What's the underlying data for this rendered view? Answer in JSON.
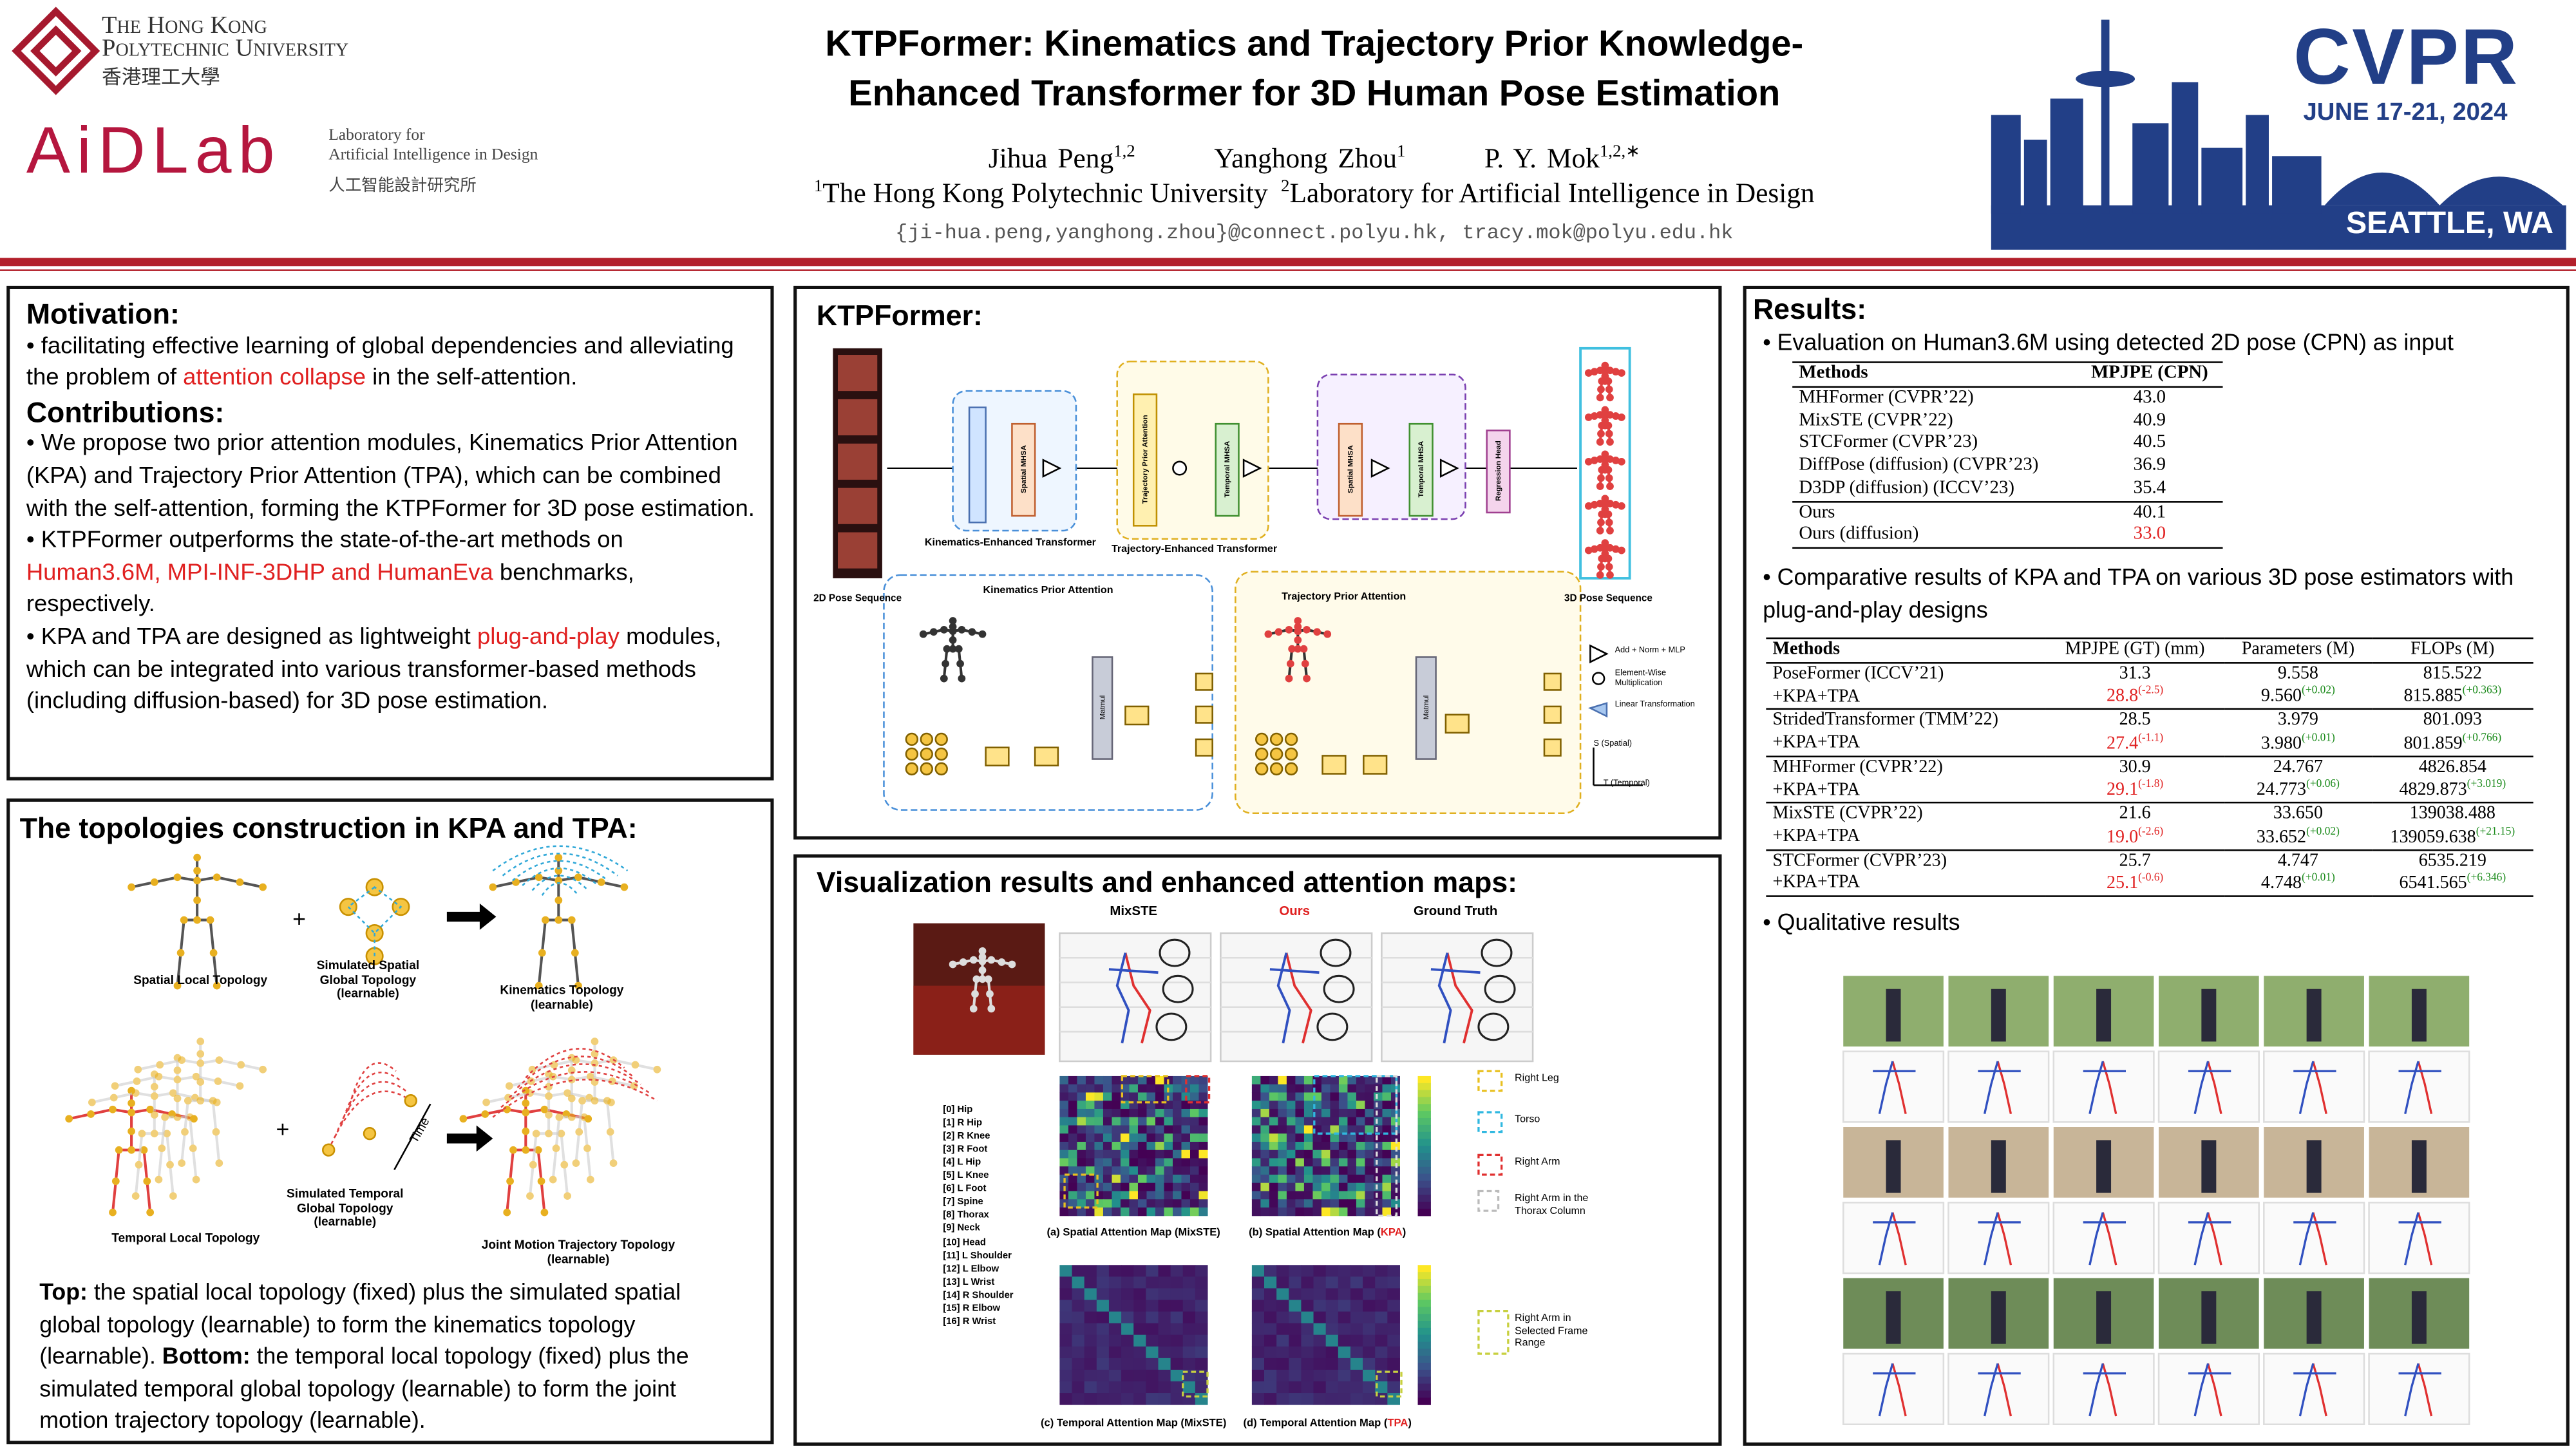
{
  "header": {
    "institution_line1": "The Hong Kong",
    "institution_line2": "Polytechnic University",
    "institution_cn": "香港理工大學",
    "lab_logo": "AiDLab",
    "lab_line1": "Laboratory for",
    "lab_line2": "Artificial Intelligence in Design",
    "lab_cn": "人工智能設計研究所",
    "title_line1": "KTPFormer: Kinematics and Trajectory Prior Knowledge-",
    "title_line2": "Enhanced Transformer for 3D Human Pose Estimation",
    "authors": [
      {
        "name": "Jihua Peng",
        "sup": "1,2"
      },
      {
        "name": "Yanghong Zhou",
        "sup": "1"
      },
      {
        "name": "P. Y. Mok",
        "sup": "1,2,∗"
      }
    ],
    "affiliations": [
      {
        "sup": "1",
        "text": "The Hong Kong Polytechnic University"
      },
      {
        "sup": "2",
        "text": "Laboratory for Artificial Intelligence in Design"
      }
    ],
    "emails": "{ji-hua.peng,yanghong.zhou}@connect.polyu.hk, tracy.mok@polyu.edu.hk",
    "conference": "CVPR",
    "dates": "JUNE 17-21, 2024",
    "location": "SEATTLE, WA"
  },
  "motivation": {
    "heading": "Motivation:",
    "parts": [
      {
        "text": "facilitating effective learning of global dependencies and alleviating the problem of "
      },
      {
        "text": "attention collapse",
        "emphasis": "red"
      },
      {
        "text": " in the self-attention."
      }
    ]
  },
  "contributions": {
    "heading": "Contributions:",
    "bullets": [
      [
        {
          "text": "We propose two prior attention modules, Kinematics Prior Attention (KPA) and Trajectory Prior Attention (TPA), which can be combined with the self-attention, forming the KTPFormer for 3D pose estimation."
        }
      ],
      [
        {
          "text": "KTPFormer outperforms the state-of-the-art methods on "
        },
        {
          "text": "Human3.6M, MPI-INF-3DHP and HumanEva",
          "emphasis": "red"
        },
        {
          "text": " benchmarks, respectively."
        }
      ],
      [
        {
          "text": "KPA and TPA are designed as lightweight "
        },
        {
          "text": "plug-and-play",
          "emphasis": "red"
        },
        {
          "text": " modules, which can be integrated into various transformer-based methods (including diffusion-based) for 3D pose estimation."
        }
      ]
    ]
  },
  "topology": {
    "heading": "The topologies construction in KPA and TPA:",
    "labels": {
      "spatial_local": "Spatial Local Topology",
      "spatial_global": "Simulated Spatial Global Topology (learnable)",
      "kinematics": "Kinematics Topology (learnable)",
      "temporal_local": "Temporal Local Topology",
      "temporal_global": "Simulated Temporal Global Topology (learnable)",
      "trajectory": "Joint Motion Trajectory Topology (learnable)",
      "time": "Time"
    },
    "caption": [
      {
        "text": "Top:",
        "emphasis": "bold"
      },
      {
        "text": " the spatial local topology (fixed) plus the simulated spatial global topology (learnable) to form the kinematics topology (learnable). "
      },
      {
        "text": "Bottom:",
        "emphasis": "bold"
      },
      {
        "text": " the temporal local topology (fixed) plus the simulated temporal global topology (learnable) to form the joint motion trajectory topology (learnable)."
      }
    ]
  },
  "architecture": {
    "heading": "KTPFormer:",
    "labels": {
      "input": "2D Pose Sequence",
      "output": "3D Pose Sequence",
      "ket": "Kinematics-Enhanced Transformer",
      "tet": "Trajectory-Enhanced Transformer",
      "kpa": "Kinematics Prior Attention",
      "tpa": "Trajectory Prior Attention",
      "spatial": "Spatial MHSA",
      "temporal": "Temporal MHSA",
      "head": "Regression Head",
      "matmul": "Matmul",
      "add_norm": "Add + Norm + MLP",
      "mult": "Element-Wise Multiplication",
      "linear": "Linear Transformation",
      "s_axis": "S (Spatial)",
      "t_axis": "T (Temporal)"
    }
  },
  "visualization": {
    "heading": "Visualization results and enhanced attention maps:",
    "columns": [
      {
        "text": "MixSTE"
      },
      {
        "text": "Ours",
        "emphasis": "red"
      },
      {
        "text": "Ground Truth"
      }
    ],
    "joints": [
      "[0] Hip",
      "[1] R Hip",
      "[2] R Knee",
      "[3] R Foot",
      "[4] L Hip",
      "[5] L Knee",
      "[6] L Foot",
      "[7] Spine",
      "[8] Thorax",
      "[9] Neck",
      "[10] Head",
      "[11] L Shoulder",
      "[12] L Elbow",
      "[13] L Wrist",
      "[14] R Shoulder",
      "[15] R Elbow",
      "[16] R Wrist"
    ],
    "captions": [
      [
        {
          "text": "(a) Spatial Attention Map (MixSTE)"
        }
      ],
      [
        {
          "text": "(b) Spatial Attention Map ("
        },
        {
          "text": "KPA",
          "emphasis": "red"
        },
        {
          "text": ")"
        }
      ],
      [
        {
          "text": "(c) Temporal Attention Map (MixSTE)"
        }
      ],
      [
        {
          "text": "(d) Temporal Attention Map ("
        },
        {
          "text": "TPA",
          "emphasis": "red"
        },
        {
          "text": ")"
        }
      ]
    ],
    "legend": [
      {
        "text": "Right Leg",
        "color": "#e8c020"
      },
      {
        "text": "Torso",
        "color": "#30b8e0"
      },
      {
        "text": "Right Arm",
        "color": "#e03030"
      },
      {
        "text": "Right Arm in the Thorax Column",
        "color": "#bbbbbb"
      },
      {
        "text": "Right Arm in Selected Frame Range",
        "color": "#c8d040"
      }
    ]
  },
  "results": {
    "heading": "Results:",
    "bullet1": "Evaluation on Human3.6M using detected 2D pose (CPN) as input",
    "table1": {
      "headers": [
        "Methods",
        "MPJPE (CPN)"
      ],
      "rows": [
        {
          "method": "MHFormer (CVPR’22)",
          "value": "43.0"
        },
        {
          "method": "MixSTE (CVPR’22)",
          "value": "40.9"
        },
        {
          "method": "STCFormer (CVPR’23)",
          "value": "40.5"
        },
        {
          "method": "DiffPose (diffusion) (CVPR’23)",
          "value": "36.9"
        },
        {
          "method": "D3DP (diffusion) (ICCV’23)",
          "value": "35.4"
        },
        {
          "method": "Ours",
          "value": "40.1"
        },
        {
          "method": "Ours (diffusion)",
          "value": "33.0",
          "emphasis": "red"
        }
      ]
    },
    "bullet2": "Comparative results of KPA and TPA on various 3D pose estimators with plug-and-play designs",
    "table2": {
      "headers": [
        "Methods",
        "MPJPE (GT) (mm)",
        "Parameters (M)",
        "FLOPs (M)"
      ],
      "groups": [
        {
          "base": [
            "PoseFormer (ICCV’21)",
            "31.3",
            "9.558",
            "815.522"
          ],
          "plus": [
            "+KPA+TPA",
            "28.8",
            "9.560",
            "815.885"
          ],
          "deltas": [
            "(-2.5)",
            "(+0.02)",
            "(+0.363)"
          ]
        },
        {
          "base": [
            "StridedTransformer (TMM’22)",
            "28.5",
            "3.979",
            "801.093"
          ],
          "plus": [
            "+KPA+TPA",
            "27.4",
            "3.980",
            "801.859"
          ],
          "deltas": [
            "(-1.1)",
            "(+0.01)",
            "(+0.766)"
          ]
        },
        {
          "base": [
            "MHFormer (CVPR’22)",
            "30.9",
            "24.767",
            "4826.854"
          ],
          "plus": [
            "+KPA+TPA",
            "29.1",
            "24.773",
            "4829.873"
          ],
          "deltas": [
            "(-1.8)",
            "(+0.06)",
            "(+3.019)"
          ]
        },
        {
          "base": [
            "MixSTE (CVPR’22)",
            "21.6",
            "33.650",
            "139038.488"
          ],
          "plus": [
            "+KPA+TPA",
            "19.0",
            "33.652",
            "139059.638"
          ],
          "deltas": [
            "(-2.6)",
            "(+0.02)",
            "(+21.15)"
          ]
        },
        {
          "base": [
            "STCFormer (CVPR’23)",
            "25.7",
            "4.747",
            "6535.219"
          ],
          "plus": [
            "+KPA+TPA",
            "25.1",
            "4.748",
            "6541.565"
          ],
          "deltas": [
            "(-0.6)",
            "(+0.01)",
            "(+6.346)"
          ]
        }
      ]
    },
    "bullet3": "Qualitative results"
  }
}
